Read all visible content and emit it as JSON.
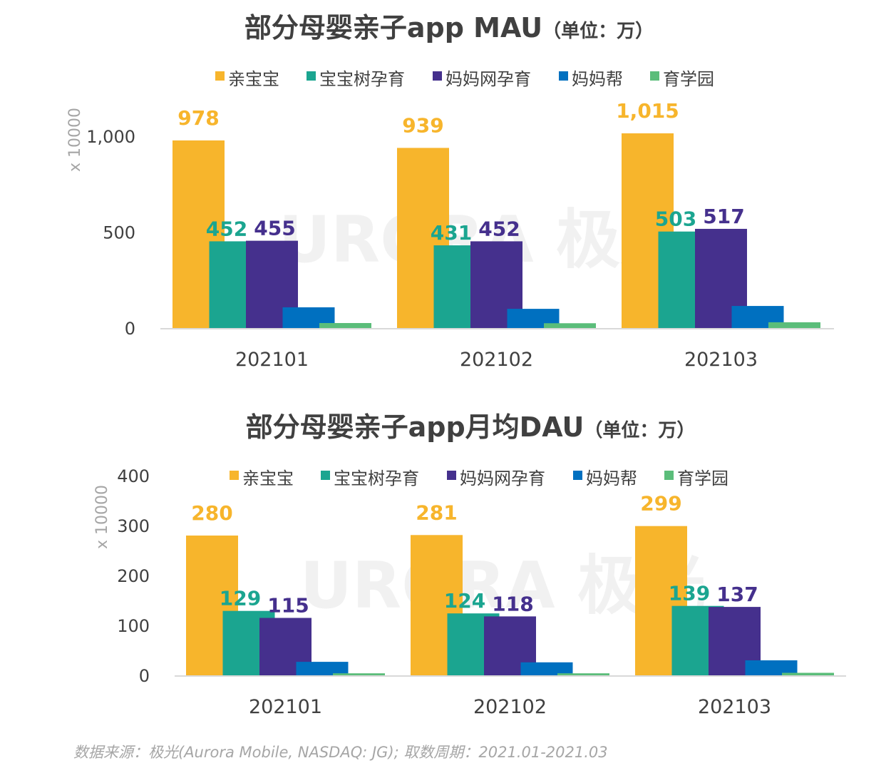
{
  "colors": {
    "亲宝宝": "#F7B52C",
    "宝宝树孕育": "#1BA590",
    "妈妈网孕育": "#45308D",
    "妈妈帮": "#0070C0",
    "育学园": "#5BBD7A"
  },
  "watermark": "URORA 极光",
  "footnote": "数据来源：极光(Aurora Mobile, NASDAQ: JG); 取数周期：2021.01-2021.03",
  "chart_data": [
    {
      "type": "bar",
      "title": "部分母婴亲子app MAU",
      "unit": "（单位：万）",
      "ylabel": "x 10000",
      "categories": [
        "202101",
        "202102",
        "202103"
      ],
      "yticks": [
        0,
        500,
        1000
      ],
      "ytick_labels": [
        "0",
        "500",
        "1,000"
      ],
      "ylim": [
        0,
        1100
      ],
      "legend_position": "top",
      "grid": false,
      "series": [
        {
          "name": "亲宝宝",
          "values": [
            978,
            939,
            1015
          ],
          "labels": [
            "978",
            "939",
            "1,015"
          ]
        },
        {
          "name": "宝宝树孕育",
          "values": [
            452,
            431,
            503
          ],
          "labels": [
            "452",
            "431",
            "503"
          ]
        },
        {
          "name": "妈妈网孕育",
          "values": [
            455,
            452,
            517
          ],
          "labels": [
            "455",
            "452",
            "517"
          ]
        },
        {
          "name": "妈妈帮",
          "values": [
            108,
            100,
            115
          ],
          "labels": []
        },
        {
          "name": "育学园",
          "values": [
            26,
            25,
            30
          ],
          "labels": []
        }
      ]
    },
    {
      "type": "bar",
      "title": "部分母婴亲子app月均DAU",
      "unit": "（单位：万）",
      "ylabel": "x 10000",
      "categories": [
        "202101",
        "202102",
        "202103"
      ],
      "yticks": [
        0,
        100,
        200,
        300,
        400
      ],
      "ytick_labels": [
        "0",
        "100",
        "200",
        "300",
        "400"
      ],
      "ylim": [
        0,
        400
      ],
      "legend_position": "top",
      "grid": false,
      "series": [
        {
          "name": "亲宝宝",
          "values": [
            280,
            281,
            299
          ],
          "labels": [
            "280",
            "281",
            "299"
          ]
        },
        {
          "name": "宝宝树孕育",
          "values": [
            129,
            124,
            139
          ],
          "labels": [
            "129",
            "124",
            "139"
          ]
        },
        {
          "name": "妈妈网孕育",
          "values": [
            115,
            118,
            137
          ],
          "labels": [
            "115",
            "118",
            "137"
          ]
        },
        {
          "name": "妈妈帮",
          "values": [
            27,
            26,
            30
          ],
          "labels": []
        },
        {
          "name": "育学园",
          "values": [
            4,
            4,
            5
          ],
          "labels": []
        }
      ]
    }
  ]
}
